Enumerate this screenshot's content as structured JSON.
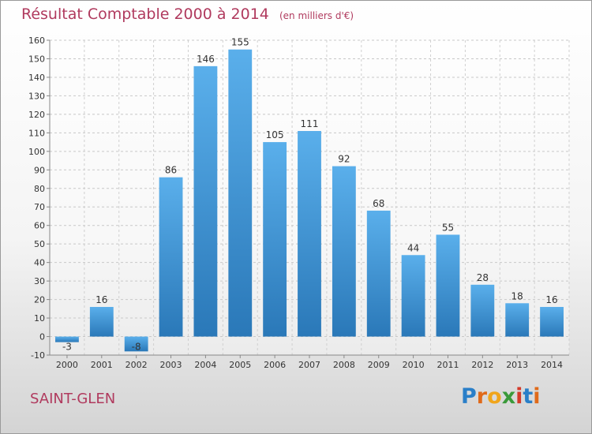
{
  "header": {
    "title": "Résultat Comptable 2000 à 2014",
    "subtitle": "(en milliers d'€)"
  },
  "commune": "SAINT-GLEN",
  "logo": {
    "text": "Proxiti",
    "letters": [
      {
        "char": "P",
        "color": "#2a7fc8"
      },
      {
        "char": "r",
        "color": "#e06a1a"
      },
      {
        "char": "o",
        "color": "#f0a51c"
      },
      {
        "char": "x",
        "color": "#3a9a3a"
      },
      {
        "char": "i",
        "color": "#d43a2a"
      },
      {
        "char": "t",
        "color": "#2a7fc8"
      },
      {
        "char": "i",
        "color": "#e06a1a"
      }
    ]
  },
  "chart_data": {
    "type": "bar",
    "categories": [
      "2000",
      "2001",
      "2002",
      "2003",
      "2004",
      "2005",
      "2006",
      "2007",
      "2008",
      "2009",
      "2010",
      "2011",
      "2012",
      "2013",
      "2014"
    ],
    "values": [
      -3,
      16,
      -8,
      86,
      146,
      155,
      105,
      111,
      92,
      68,
      44,
      55,
      28,
      18,
      16
    ],
    "ylim": [
      -10,
      160
    ],
    "yticks": [
      -10,
      0,
      10,
      20,
      30,
      40,
      50,
      60,
      70,
      80,
      90,
      100,
      110,
      120,
      130,
      140,
      150,
      160
    ],
    "grid": true,
    "bar_color_top": "#5aafeb",
    "bar_color_bottom": "#2a78b8"
  }
}
